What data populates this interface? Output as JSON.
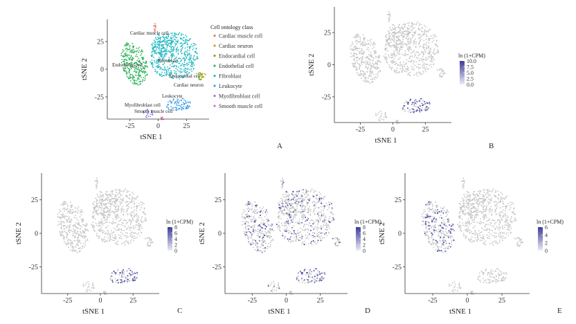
{
  "figure": {
    "colors": {
      "gray": "#c8c8c8",
      "expr": "#3f3f9f",
      "axis": "#333333"
    }
  },
  "chart_data": [
    {
      "panel": "A",
      "type": "scatter",
      "xlabel": "tSNE 1",
      "ylabel": "tSNE 2",
      "xticks": [
        "-25",
        "0",
        "25"
      ],
      "yticks": [
        "25",
        "0",
        "-25"
      ],
      "xlim": [
        -45,
        45
      ],
      "ylim": [
        -45,
        45
      ],
      "legend_title": "Cell ontology class",
      "legend": [
        {
          "name": "Cardiac muscle cell",
          "color": "#f0726b"
        },
        {
          "name": "Cardiac neuron",
          "color": "#c9a21e"
        },
        {
          "name": "Endocardial cell",
          "color": "#7cae00"
        },
        {
          "name": "Endothelial cell",
          "color": "#2fb35c"
        },
        {
          "name": "Fibroblast",
          "color": "#22b8c2"
        },
        {
          "name": "Leukocyte",
          "color": "#3f9ee8"
        },
        {
          "name": "Myofibroblast cell",
          "color": "#9a78e0"
        },
        {
          "name": "Smooth muscle cell",
          "color": "#e46bc0"
        }
      ],
      "clusters": [
        {
          "label": "Cardiac muscle cell",
          "cls": 0,
          "x": -2,
          "y": 33,
          "n": 10
        },
        {
          "label": "",
          "cls": 1,
          "x": 38,
          "y": -5,
          "n": 10
        },
        {
          "label": "Endocardial cell",
          "cls": 2,
          "x": 35,
          "y": -3,
          "n": 20
        },
        {
          "label": "Endothelial cell",
          "cls": 3,
          "x": -20,
          "y": 4,
          "n": 300
        },
        {
          "label": "Fibroblast",
          "cls": 4,
          "x": 15,
          "y": 10,
          "n": 500
        },
        {
          "label": "Leukocyte",
          "cls": 5,
          "x": 18,
          "y": -32,
          "n": 80
        },
        {
          "label": "Myofibroblast cell",
          "cls": 6,
          "x": -8,
          "y": -40,
          "n": 20
        },
        {
          "label": "Smooth muscle cell",
          "cls": 7,
          "x": 5,
          "y": -43,
          "n": 8
        }
      ],
      "annotations": [
        "Cardiac muscle cell",
        "Endothelial cell",
        "Fibroblast",
        "Endocardial cell",
        "Cardiac neuron",
        "Leukocyte",
        "Myofibroblast cell",
        "Smooth muscle cell"
      ]
    },
    {
      "panel": "B",
      "type": "scatter",
      "xlabel": "tSNE 1",
      "ylabel": "tSNE 2",
      "xticks": [
        "-25",
        "0",
        "25"
      ],
      "yticks": [
        "25",
        "0",
        "-25"
      ],
      "xlim": [
        -45,
        45
      ],
      "ylim": [
        -45,
        45
      ],
      "colorbar_title": "ln (1+CPM)",
      "colorbar_ticks": [
        "10.0",
        "7.5",
        "5.0",
        "2.5",
        "0.0"
      ],
      "colorbar_range": [
        0,
        10
      ],
      "expressing_cluster": "Leukocyte"
    },
    {
      "panel": "C",
      "type": "scatter",
      "xlabel": "tSNE 1",
      "ylabel": "tSNE 2",
      "xticks": [
        "-25",
        "0",
        "25"
      ],
      "yticks": [
        "25",
        "0",
        "-25"
      ],
      "xlim": [
        -45,
        45
      ],
      "ylim": [
        -45,
        45
      ],
      "colorbar_title": "ln (1+CPM)",
      "colorbar_ticks": [
        "8",
        "6",
        "4",
        "2",
        "0"
      ],
      "colorbar_range": [
        0,
        8
      ],
      "expressing_cluster": "Leukocyte"
    },
    {
      "panel": "D",
      "type": "scatter",
      "xlabel": "tSNE 1",
      "ylabel": "tSNE 2",
      "xticks": [
        "-25",
        "0",
        "25"
      ],
      "yticks": [
        "25",
        "0",
        "-25"
      ],
      "xlim": [
        -45,
        45
      ],
      "ylim": [
        -45,
        45
      ],
      "colorbar_title": "ln (1+CPM)",
      "colorbar_ticks": [
        "8",
        "6",
        "4",
        "2",
        "0"
      ],
      "colorbar_range": [
        0,
        8
      ],
      "expressing_cluster": "Broad (endothelial, fibroblast, leukocyte)"
    },
    {
      "panel": "E",
      "type": "scatter",
      "xlabel": "tSNE 1",
      "ylabel": "tSNE 2",
      "xticks": [
        "-25",
        "0",
        "25"
      ],
      "yticks": [
        "25",
        "0",
        "-25"
      ],
      "xlim": [
        -45,
        45
      ],
      "ylim": [
        -45,
        45
      ],
      "colorbar_title": "ln (1+CPM)",
      "colorbar_ticks": [
        "6",
        "4",
        "2",
        "0"
      ],
      "colorbar_range": [
        0,
        6
      ],
      "expressing_cluster": "Endothelial cell"
    }
  ]
}
